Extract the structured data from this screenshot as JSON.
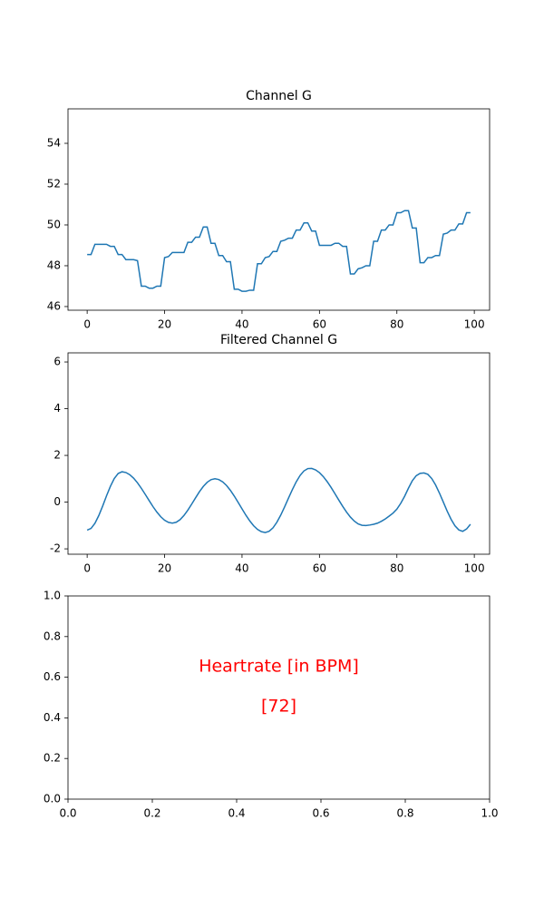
{
  "chart_data": [
    {
      "type": "line",
      "title": "Channel G",
      "color": "#1f77b4",
      "x": [
        0,
        1,
        2,
        3,
        4,
        5,
        6,
        7,
        8,
        9,
        10,
        11,
        12,
        13,
        14,
        15,
        16,
        17,
        18,
        19,
        20,
        21,
        22,
        23,
        24,
        25,
        26,
        27,
        28,
        29,
        30,
        31,
        32,
        33,
        34,
        35,
        36,
        37,
        38,
        39,
        40,
        41,
        42,
        43,
        44,
        45,
        46,
        47,
        48,
        49,
        50,
        51,
        52,
        53,
        54,
        55,
        56,
        57,
        58,
        59,
        60,
        61,
        62,
        63,
        64,
        65,
        66,
        67,
        68,
        69,
        70,
        71,
        72,
        73,
        74,
        75,
        76,
        77,
        78,
        79,
        80,
        81,
        82,
        83,
        84,
        85,
        86,
        87,
        88,
        89,
        90,
        91,
        92,
        93,
        94,
        95,
        96,
        97,
        98,
        99
      ],
      "values": [
        48.55,
        48.55,
        49.05,
        49.05,
        49.05,
        49.05,
        48.95,
        48.95,
        48.55,
        48.55,
        48.3,
        48.3,
        48.3,
        48.25,
        47.0,
        47.0,
        46.9,
        46.9,
        47.0,
        47.0,
        48.4,
        48.45,
        48.65,
        48.65,
        48.65,
        48.65,
        49.15,
        49.15,
        49.4,
        49.4,
        49.9,
        49.9,
        49.1,
        49.1,
        48.5,
        48.5,
        48.2,
        48.2,
        46.85,
        46.85,
        46.75,
        46.75,
        46.8,
        46.8,
        48.1,
        48.1,
        48.4,
        48.45,
        48.7,
        48.7,
        49.2,
        49.25,
        49.35,
        49.35,
        49.75,
        49.75,
        50.1,
        50.1,
        49.7,
        49.7,
        49.0,
        49.0,
        49.0,
        49.0,
        49.1,
        49.1,
        48.95,
        48.95,
        47.6,
        47.6,
        47.85,
        47.9,
        48.0,
        48.0,
        49.2,
        49.2,
        49.75,
        49.75,
        50.0,
        50.0,
        50.6,
        50.6,
        50.7,
        50.7,
        49.85,
        49.85,
        48.15,
        48.15,
        48.4,
        48.4,
        48.5,
        48.5,
        49.55,
        49.6,
        49.75,
        49.75,
        50.05,
        50.05,
        50.6,
        50.6
      ],
      "xlim": [
        -4.95,
        103.95
      ],
      "xticks": [
        0,
        20,
        40,
        60,
        80,
        100
      ],
      "ylim": [
        45.82,
        55.69
      ],
      "yticks": [
        46,
        48,
        50,
        52,
        54
      ]
    },
    {
      "type": "line",
      "title": "Filtered Channel G",
      "color": "#1f77b4",
      "x": [
        0,
        1,
        2,
        3,
        4,
        5,
        6,
        7,
        8,
        9,
        10,
        11,
        12,
        13,
        14,
        15,
        16,
        17,
        18,
        19,
        20,
        21,
        22,
        23,
        24,
        25,
        26,
        27,
        28,
        29,
        30,
        31,
        32,
        33,
        34,
        35,
        36,
        37,
        38,
        39,
        40,
        41,
        42,
        43,
        44,
        45,
        46,
        47,
        48,
        49,
        50,
        51,
        52,
        53,
        54,
        55,
        56,
        57,
        58,
        59,
        60,
        61,
        62,
        63,
        64,
        65,
        66,
        67,
        68,
        69,
        70,
        71,
        72,
        73,
        74,
        75,
        76,
        77,
        78,
        79,
        80,
        81,
        82,
        83,
        84,
        85,
        86,
        87,
        88,
        89,
        90,
        91,
        92,
        93,
        94,
        95,
        96,
        97,
        98,
        99
      ],
      "values": [
        -1.2,
        -1.125,
        -0.91,
        -0.575,
        -0.17,
        0.27,
        0.675,
        1.01,
        1.225,
        1.3,
        1.268,
        1.173,
        1.024,
        0.825,
        0.59,
        0.332,
        0.068,
        -0.192,
        -0.425,
        -0.624,
        -0.774,
        -0.867,
        -0.9,
        -0.862,
        -0.75,
        -0.572,
        -0.345,
        -0.085,
        0.185,
        0.445,
        0.672,
        0.85,
        0.962,
        1.0,
        0.966,
        0.868,
        0.711,
        0.503,
        0.258,
        -0.012,
        -0.288,
        -0.559,
        -0.803,
        -1.011,
        -1.168,
        -1.266,
        -1.3,
        -1.249,
        -1.1,
        -0.863,
        -0.557,
        -0.205,
        0.169,
        0.536,
        0.868,
        1.142,
        1.336,
        1.437,
        1.442,
        1.381,
        1.262,
        1.091,
        0.877,
        0.63,
        0.362,
        0.088,
        -0.18,
        -0.427,
        -0.641,
        -0.812,
        -0.931,
        -0.992,
        -1.0,
        -0.98,
        -0.95,
        -0.9,
        -0.82,
        -0.72,
        -0.6,
        -0.47,
        -0.3,
        -0.05,
        0.25,
        0.6,
        0.92,
        1.13,
        1.23,
        1.25,
        1.189,
        1.011,
        0.735,
        0.386,
        0.0,
        -0.386,
        -0.735,
        -1.011,
        -1.189,
        -1.25,
        -1.15,
        -0.95
      ],
      "xlim": [
        -4.95,
        103.95
      ],
      "xticks": [
        0,
        20,
        40,
        60,
        80,
        100
      ],
      "ylim": [
        -2.23,
        6.39
      ],
      "yticks": [
        -2,
        0,
        2,
        4,
        6
      ]
    },
    {
      "type": "text",
      "annotations": [
        "Heartrate [in BPM]",
        "[72]"
      ],
      "annotation_color": "#ff0000",
      "xlim": [
        0,
        1
      ],
      "xticks": [
        {
          "value": 0,
          "label": "0.0"
        },
        0.2,
        0.4,
        0.6,
        0.8,
        {
          "value": 1,
          "label": "1.0"
        }
      ],
      "ylim": [
        0,
        1
      ],
      "yticks": [
        {
          "value": 0,
          "label": "0.0"
        },
        0.2,
        0.4,
        0.6,
        0.8,
        {
          "value": 1,
          "label": "1.0"
        }
      ]
    }
  ]
}
